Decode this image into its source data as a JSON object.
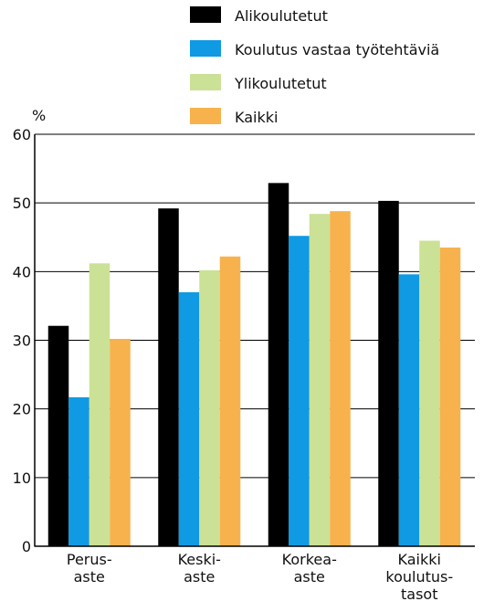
{
  "chart_data": {
    "type": "bar",
    "ylabel": "%",
    "ylim": [
      0,
      60
    ],
    "yticks": [
      0,
      10,
      20,
      30,
      40,
      50,
      60
    ],
    "grid": true,
    "legend_position": "top",
    "categories": [
      [
        "Perus-",
        "aste"
      ],
      [
        "Keski-",
        "aste"
      ],
      [
        "Korkea-",
        "aste"
      ],
      [
        "Kaikki",
        "koulutus-",
        "tasot"
      ]
    ],
    "series": [
      {
        "name": "Alikoulutetut",
        "color": "#000000",
        "values": [
          32.1,
          49.2,
          52.9,
          50.3
        ]
      },
      {
        "name": "Koulutus vastaa työtehtäviä",
        "color": "#0f9ae3",
        "values": [
          21.7,
          37.0,
          45.2,
          39.6
        ]
      },
      {
        "name": "Ylikoulutetut",
        "color": "#cbe196",
        "values": [
          41.2,
          40.2,
          48.4,
          44.5
        ]
      },
      {
        "name": "Kaikki",
        "color": "#f7b24d",
        "values": [
          30.2,
          42.2,
          48.8,
          43.5
        ]
      }
    ]
  }
}
